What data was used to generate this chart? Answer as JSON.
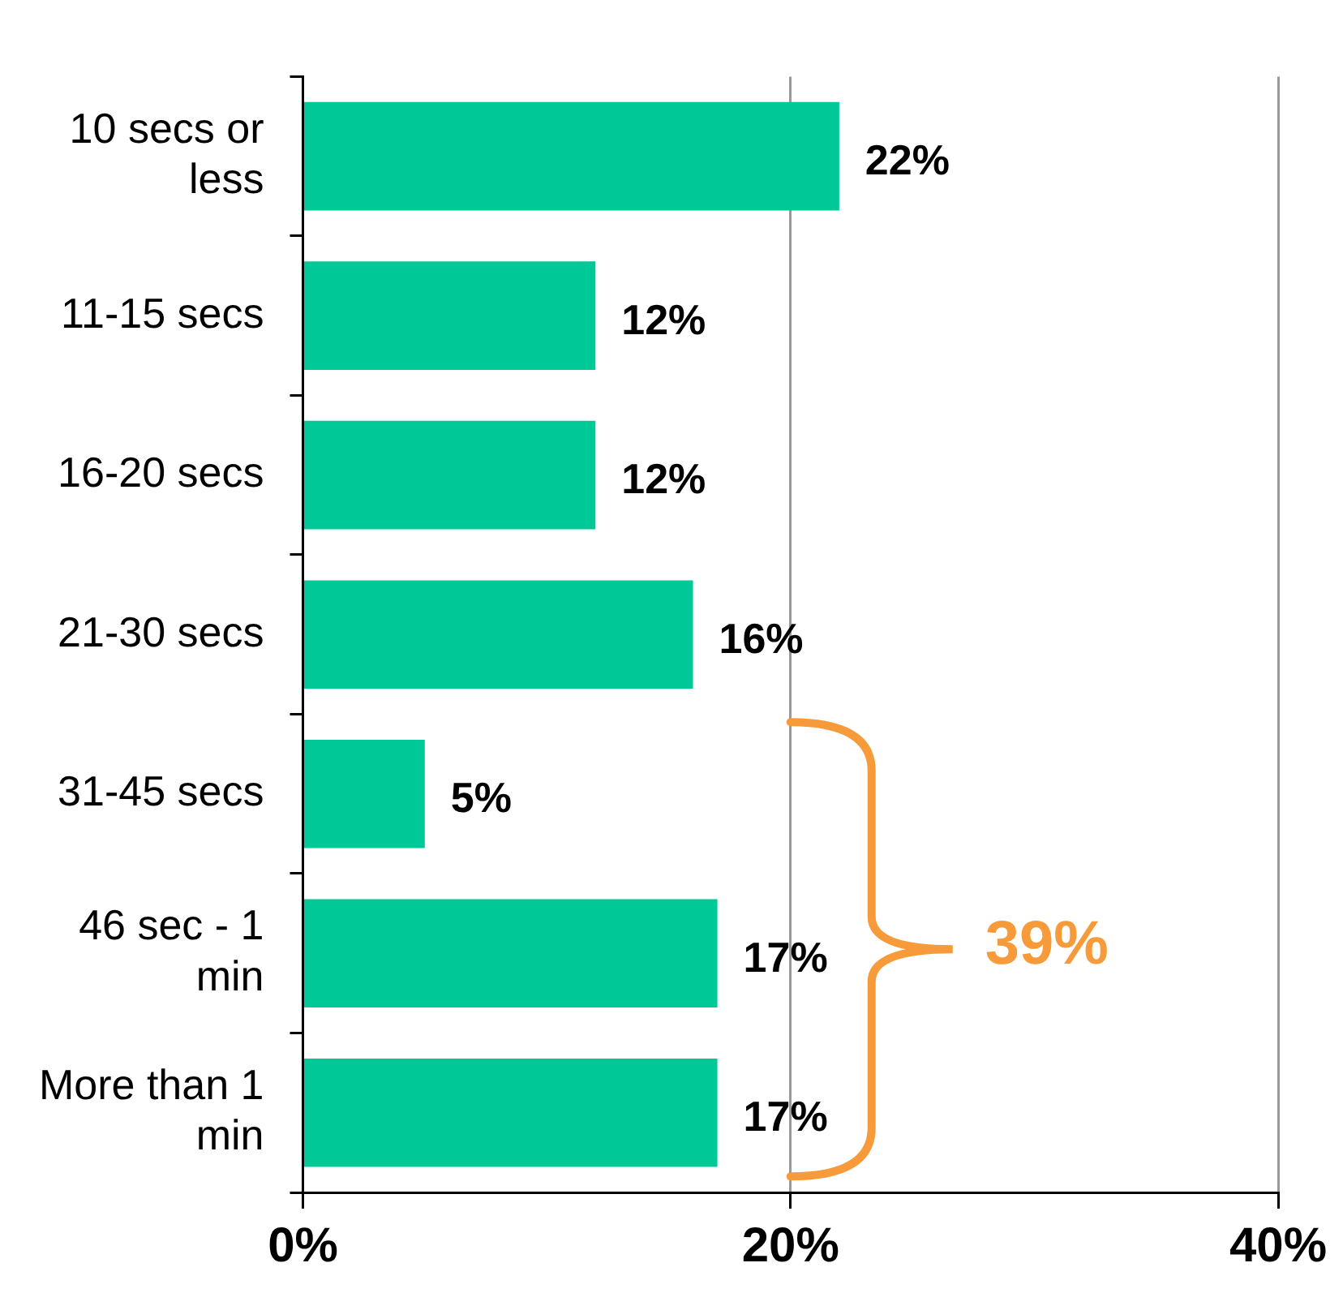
{
  "chart_data": {
    "type": "bar",
    "orientation": "horizontal",
    "categories": [
      "10 secs or less",
      "11-15 secs",
      "16-20 secs",
      "21-30 secs",
      "31-45 secs",
      "46 sec - 1 min",
      "More than 1 min"
    ],
    "values": [
      22,
      12,
      12,
      16,
      5,
      17,
      17
    ],
    "value_labels": [
      "22%",
      "12%",
      "12%",
      "16%",
      "5%",
      "17%",
      "17%"
    ],
    "color": "#00c896",
    "xlim": [
      0,
      40
    ],
    "xticks": [
      {
        "value": 0,
        "label": "0%"
      },
      {
        "value": 20,
        "label": "20%"
      },
      {
        "value": 40,
        "label": "40%"
      }
    ],
    "grid": "x",
    "annotations": [
      "39%"
    ]
  }
}
